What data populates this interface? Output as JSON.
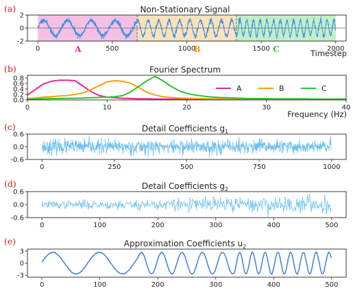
{
  "colors": {
    "signal": "#3a8ee6",
    "detail": "#6ec0ef",
    "approx": "#4a86d4",
    "A": "#e8268f",
    "B": "#f5a00c",
    "C": "#2bc42b",
    "regionA": "#f6c0e4",
    "regionB": "#fbe2bb",
    "regionC": "#c2efc7",
    "panel_letter": "#cc1f1f",
    "divider": "#2e8b57"
  },
  "chart_data": [
    {
      "id": "a",
      "type": "line",
      "panel_label": "(a)",
      "title": "Non-Stationary Signal",
      "xlabel": "Timestep",
      "xlim": [
        -70,
        2070
      ],
      "ylim": [
        -2,
        2
      ],
      "xticks": [
        0,
        500,
        1000,
        1500,
        2000
      ],
      "yticks": [
        -2,
        0,
        2
      ],
      "regions": [
        {
          "name": "A",
          "x0": 0,
          "x1": 667,
          "color": "#f6c0e4"
        },
        {
          "name": "B",
          "x0": 667,
          "x1": 1333,
          "color": "#fbe2bb"
        },
        {
          "name": "C",
          "x0": 1333,
          "x1": 2000,
          "color": "#c2efc7"
        }
      ],
      "region_labels": [
        {
          "text": "A",
          "x": 270,
          "color": "#e8268f"
        },
        {
          "text": "B",
          "x": 1070,
          "color": "#f5a00c"
        },
        {
          "text": "C",
          "x": 1600,
          "color": "#2bc42b"
        }
      ],
      "signal": {
        "n": 2000,
        "amplitude": 1.2,
        "segments": [
          {
            "x0": 0,
            "x1": 667,
            "period": 160
          },
          {
            "x0": 667,
            "x1": 1333,
            "period": 70
          },
          {
            "x0": 1333,
            "x1": 2000,
            "period": 45
          }
        ],
        "noise": 0.2
      }
    },
    {
      "id": "b",
      "type": "line",
      "panel_label": "(b)",
      "title": "Fourier Spectrum",
      "xlabel": "Frequency (Hz)",
      "xlim": [
        0,
        40
      ],
      "ylim": [
        0,
        0.9
      ],
      "xticks": [
        0,
        10,
        20,
        30,
        40
      ],
      "yticks": [
        0.0,
        0.2,
        0.4,
        0.6,
        0.8
      ],
      "ytick_labels": [
        "0.0",
        "0.2",
        "0.4",
        "0.6",
        "0.8"
      ],
      "x": [
        0,
        1,
        2,
        3,
        4,
        5,
        6,
        7,
        8,
        9,
        10,
        11,
        12,
        13,
        14,
        15,
        16,
        17,
        18,
        19,
        20,
        21,
        22,
        23,
        24,
        25,
        26,
        27,
        28,
        29,
        30,
        31,
        32,
        33,
        34,
        35,
        36,
        37,
        38,
        39,
        40
      ],
      "series": [
        {
          "name": "A",
          "color": "#e8268f",
          "values": [
            0.18,
            0.38,
            0.58,
            0.68,
            0.72,
            0.72,
            0.7,
            0.5,
            0.3,
            0.16,
            0.1,
            0.08,
            0.06,
            0.05,
            0.04,
            0.04,
            0.03,
            0.03,
            0.03,
            0.03,
            0.02,
            0.02,
            0.02,
            0.02,
            0.02,
            0.02,
            0.02,
            0.02,
            0.02,
            0.02,
            0.02,
            0.02,
            0.02,
            0.02,
            0.02,
            0.02,
            0.02,
            0.02,
            0.02,
            0.02,
            0.02
          ]
        },
        {
          "name": "B",
          "color": "#f5a00c",
          "values": [
            0.05,
            0.07,
            0.1,
            0.12,
            0.14,
            0.16,
            0.2,
            0.26,
            0.38,
            0.52,
            0.66,
            0.7,
            0.68,
            0.6,
            0.45,
            0.28,
            0.18,
            0.12,
            0.09,
            0.07,
            0.06,
            0.05,
            0.05,
            0.04,
            0.04,
            0.04,
            0.04,
            0.04,
            0.04,
            0.04,
            0.04,
            0.03,
            0.03,
            0.03,
            0.03,
            0.03,
            0.03,
            0.03,
            0.03,
            0.03,
            0.03
          ]
        },
        {
          "name": "C",
          "color": "#2bc42b",
          "values": [
            0.02,
            0.03,
            0.04,
            0.05,
            0.05,
            0.06,
            0.06,
            0.07,
            0.08,
            0.09,
            0.1,
            0.12,
            0.16,
            0.3,
            0.5,
            0.7,
            0.86,
            0.7,
            0.5,
            0.34,
            0.24,
            0.18,
            0.14,
            0.11,
            0.09,
            0.08,
            0.07,
            0.06,
            0.05,
            0.05,
            0.05,
            0.04,
            0.04,
            0.04,
            0.04,
            0.04,
            0.03,
            0.03,
            0.03,
            0.03,
            0.03
          ]
        }
      ],
      "legend": {
        "placement": "top-right",
        "entries": [
          "A",
          "B",
          "C"
        ]
      }
    },
    {
      "id": "c",
      "type": "line",
      "panel_label": "(c)",
      "title": "Detail Coefficients g",
      "title_sub": "1",
      "xlim": [
        -50,
        1050
      ],
      "ylim": [
        -0.6,
        0.6
      ],
      "xticks": [
        0,
        250,
        500,
        750,
        1000
      ],
      "yticks": [
        -0.6,
        0.0,
        0.6
      ],
      "ytick_labels": [
        "-0.6",
        "0.0",
        "0.6"
      ],
      "noise": {
        "n": 1000,
        "scale": 0.17,
        "clip": 0.55,
        "growth": 0
      }
    },
    {
      "id": "d",
      "type": "line",
      "panel_label": "(d)",
      "title": "Detail Coefficients g",
      "title_sub": "2",
      "xlim": [
        -25,
        525
      ],
      "ylim": [
        -0.6,
        0.6
      ],
      "xticks": [
        0,
        100,
        200,
        300,
        400,
        500
      ],
      "yticks": [
        -0.6,
        0.0,
        0.6
      ],
      "ytick_labels": [
        "-0.6",
        "0.0",
        "0.6"
      ],
      "noise": {
        "n": 500,
        "scale": 0.08,
        "clip": 0.58,
        "growth": 0.18
      }
    },
    {
      "id": "e",
      "type": "line",
      "panel_label": "(e)",
      "title": "Approximation Coefficients u",
      "title_sub": "2",
      "xlim": [
        -25,
        525
      ],
      "ylim": [
        -3.5,
        3.5
      ],
      "xticks": [
        0,
        100,
        200,
        300,
        400,
        500
      ],
      "yticks": [
        -3,
        0,
        3
      ],
      "ytick_labels": [
        "-3",
        "0",
        "3"
      ],
      "signal": {
        "n": 500,
        "amplitude": 2.7,
        "segments": [
          {
            "x0": 0,
            "x1": 167,
            "period": 80
          },
          {
            "x0": 167,
            "x1": 333,
            "period": 35
          },
          {
            "x0": 333,
            "x1": 500,
            "period": 22
          }
        ],
        "noise": 0.05
      }
    }
  ]
}
